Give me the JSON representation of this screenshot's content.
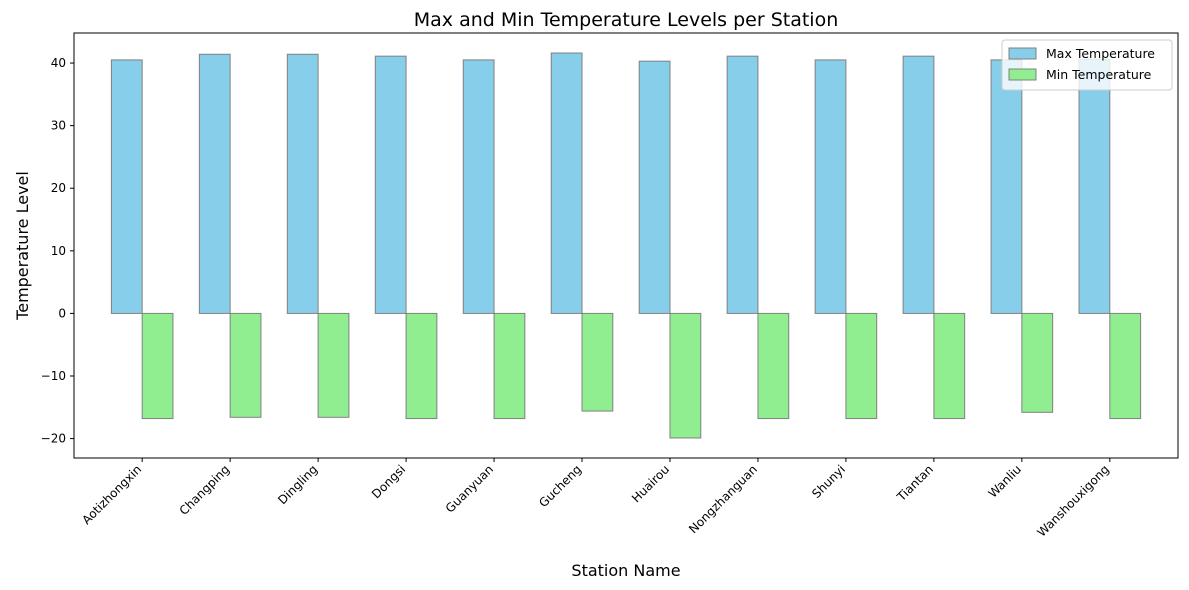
{
  "chart_data": {
    "type": "bar",
    "title": "Max and Min Temperature Levels per Station",
    "xlabel": "Station Name",
    "ylabel": "Temperature Level",
    "categories": [
      "Aotizhongxin",
      "Changping",
      "Dingling",
      "Dongsi",
      "Guanyuan",
      "Gucheng",
      "Huairou",
      "Nongzhanguan",
      "Shunyi",
      "Tiantan",
      "Wanliu",
      "Wanshouxigong"
    ],
    "series": [
      {
        "name": "Max Temperature",
        "color": "#87ceeb",
        "values": [
          40.5,
          41.4,
          41.4,
          41.1,
          40.5,
          41.6,
          40.3,
          41.1,
          40.5,
          41.1,
          40.5,
          40.6
        ]
      },
      {
        "name": "Min Temperature",
        "color": "#90ee90",
        "values": [
          -16.8,
          -16.6,
          -16.6,
          -16.8,
          -16.8,
          -15.6,
          -19.9,
          -16.8,
          -16.8,
          -16.8,
          -15.8,
          -16.8
        ]
      }
    ],
    "ylim": [
      -23.1,
      44.8
    ],
    "yticks": [
      -20,
      -10,
      0,
      10,
      20,
      30,
      40
    ],
    "ytick_labels": [
      "−20",
      "−10",
      "0",
      "10",
      "20",
      "30",
      "40"
    ],
    "grid": false,
    "legend": "top-right",
    "bar_edge_color": "#808080"
  }
}
